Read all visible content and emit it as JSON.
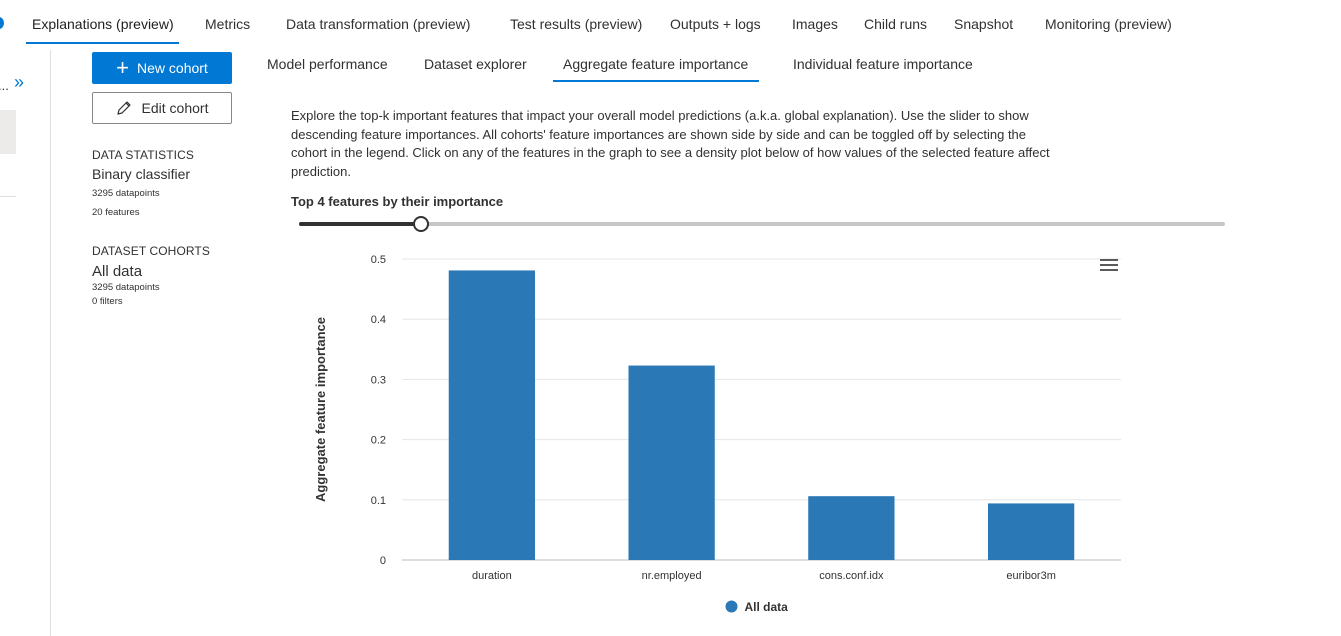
{
  "top_tabs": [
    {
      "label": "Explanations (preview)",
      "active": true
    },
    {
      "label": "Metrics"
    },
    {
      "label": "Data transformation (preview)"
    },
    {
      "label": "Test results (preview)"
    },
    {
      "label": "Outputs + logs"
    },
    {
      "label": "Images"
    },
    {
      "label": "Child runs"
    },
    {
      "label": "Snapshot"
    },
    {
      "label": "Monitoring (preview)"
    }
  ],
  "rail": {
    "chevron": "»",
    "ellipsis": "..."
  },
  "cohort_panel": {
    "new_cohort_label": "New cohort",
    "edit_cohort_label": "Edit cohort",
    "data_statistics": {
      "heading": "DATA STATISTICS",
      "model_type": "Binary classifier",
      "datapoints": "3295 datapoints",
      "features": "20 features"
    },
    "dataset_cohorts": {
      "heading": "DATASET COHORTS",
      "name": "All data",
      "datapoints": "3295 datapoints",
      "filters": "0 filters"
    }
  },
  "sub_tabs": [
    {
      "label": "Model performance"
    },
    {
      "label": "Dataset explorer"
    },
    {
      "label": "Aggregate feature importance",
      "active": true
    },
    {
      "label": "Individual feature importance"
    }
  ],
  "description": "Explore the top-k important features that impact your overall model predictions (a.k.a. global explanation). Use the slider to show descending feature importances. All cohorts' feature importances are shown side by side and can be toggled off by selecting the cohort in the legend. Click on any of the features in the graph to see a density plot below of how values of the selected feature affect prediction.",
  "slider": {
    "label": "Top 4 features by their importance",
    "value": 4,
    "min": 1,
    "max": 20
  },
  "chart_data": {
    "type": "bar",
    "categories": [
      "duration",
      "nr.employed",
      "cons.conf.idx",
      "euribor3m"
    ],
    "series": [
      {
        "name": "All data",
        "values": [
          0.481,
          0.323,
          0.106,
          0.094
        ],
        "color": "#2b78b6"
      }
    ],
    "ylabel": "Aggregate feature importance",
    "xlabel": "",
    "ylim": [
      0,
      0.5
    ],
    "yticks": [
      "0",
      "0.1",
      "0.2",
      "0.3",
      "0.4",
      "0.5"
    ],
    "grid": true,
    "legend": "bottom-center"
  },
  "colors": {
    "accent": "#0078d4",
    "bar": "#2b78b6"
  }
}
